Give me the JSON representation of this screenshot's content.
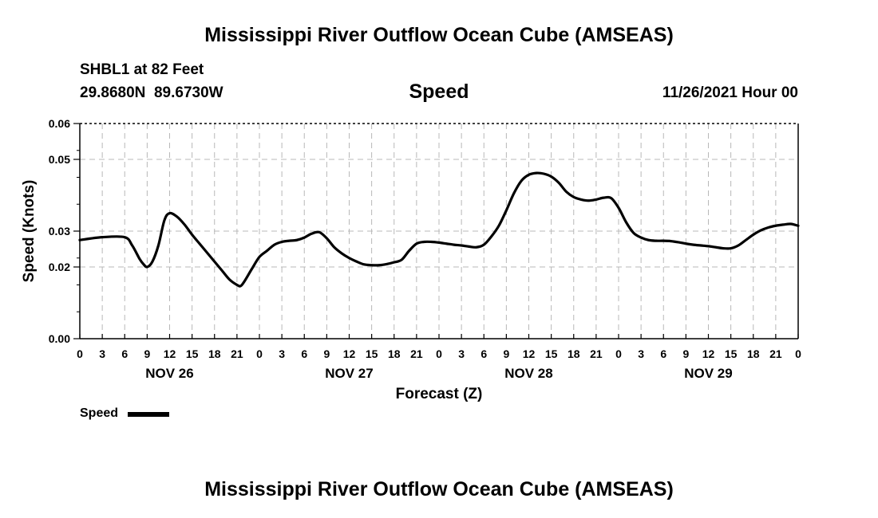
{
  "header": {
    "title": "Mississippi River Outflow Ocean Cube (AMSEAS)",
    "station": "SHBL1 at 82 Feet",
    "coords": "29.8680N  89.6730W",
    "variable": "Speed",
    "datetime": "11/26/2021 Hour 00"
  },
  "footer": {
    "title": "Mississippi River Outflow Ocean Cube (AMSEAS)"
  },
  "chart_data": {
    "type": "line",
    "title": "Speed",
    "xlabel": "Forecast (Z)",
    "ylabel": "Speed (Knots)",
    "xlim": [
      0,
      96
    ],
    "ylim": [
      0,
      0.06
    ],
    "yticks": [
      "0.00",
      "0.02",
      "0.03",
      "0.05",
      "0.06"
    ],
    "ytick_values": [
      0,
      0.02,
      0.03,
      0.05,
      0.06
    ],
    "xtick_labels": [
      "0",
      "3",
      "6",
      "9",
      "12",
      "15",
      "18",
      "21",
      "0",
      "3",
      "6",
      "9",
      "12",
      "15",
      "18",
      "21",
      "0",
      "3",
      "6",
      "9",
      "12",
      "15",
      "18",
      "21",
      "0",
      "3",
      "6",
      "9",
      "12",
      "15",
      "18",
      "21",
      "0"
    ],
    "date_labels": [
      {
        "label": "NOV 26",
        "hour": 12
      },
      {
        "label": "NOV 27",
        "hour": 36
      },
      {
        "label": "NOV 28",
        "hour": 60
      },
      {
        "label": "NOV 29",
        "hour": 84
      }
    ],
    "grid": true,
    "legend_position": "bottom-left",
    "series": [
      {
        "name": "Speed",
        "color": "#000000",
        "x": [
          0,
          3,
          6,
          7,
          8,
          8.5,
          9,
          9.7,
          10.5,
          11.3,
          12,
          13,
          14,
          15,
          16,
          17,
          18,
          19,
          20,
          21,
          21.5,
          22,
          23,
          24,
          25,
          26,
          27,
          28,
          29,
          30,
          31,
          32,
          33,
          34,
          35,
          36,
          37,
          38,
          39,
          40,
          41,
          42,
          43,
          44,
          45,
          46,
          47,
          48,
          49,
          50,
          51,
          52,
          53,
          54,
          55,
          56,
          57,
          58,
          59,
          60,
          61,
          62,
          63,
          64,
          65,
          66,
          67,
          68,
          69,
          70,
          71,
          72,
          73,
          74,
          75,
          76,
          77,
          78,
          79,
          80,
          81,
          82,
          83,
          84,
          85,
          86,
          87,
          88,
          89,
          90,
          91,
          92,
          93,
          94,
          95,
          96
        ],
        "y": [
          0.0275,
          0.0283,
          0.0283,
          0.026,
          0.0222,
          0.0208,
          0.02,
          0.0215,
          0.026,
          0.033,
          0.035,
          0.034,
          0.0318,
          0.029,
          0.0265,
          0.024,
          0.0215,
          0.019,
          0.0165,
          0.015,
          0.0147,
          0.016,
          0.0195,
          0.0228,
          0.0245,
          0.0262,
          0.027,
          0.0273,
          0.0275,
          0.0282,
          0.0293,
          0.0297,
          0.028,
          0.0255,
          0.0238,
          0.0225,
          0.0215,
          0.0207,
          0.0205,
          0.0205,
          0.0208,
          0.0213,
          0.022,
          0.0245,
          0.0265,
          0.027,
          0.027,
          0.0268,
          0.0265,
          0.0262,
          0.026,
          0.0257,
          0.0255,
          0.0262,
          0.0285,
          0.0315,
          0.0358,
          0.0405,
          0.044,
          0.0457,
          0.0462,
          0.046,
          0.0452,
          0.0435,
          0.041,
          0.0395,
          0.0388,
          0.0385,
          0.0388,
          0.0393,
          0.0392,
          0.0365,
          0.0325,
          0.0295,
          0.0282,
          0.0275,
          0.0273,
          0.0273,
          0.0272,
          0.0269,
          0.0265,
          0.0262,
          0.026,
          0.0258,
          0.0255,
          0.0252,
          0.0252,
          0.026,
          0.0275,
          0.029,
          0.0302,
          0.031,
          0.0315,
          0.0318,
          0.032,
          0.0315
        ]
      }
    ]
  }
}
